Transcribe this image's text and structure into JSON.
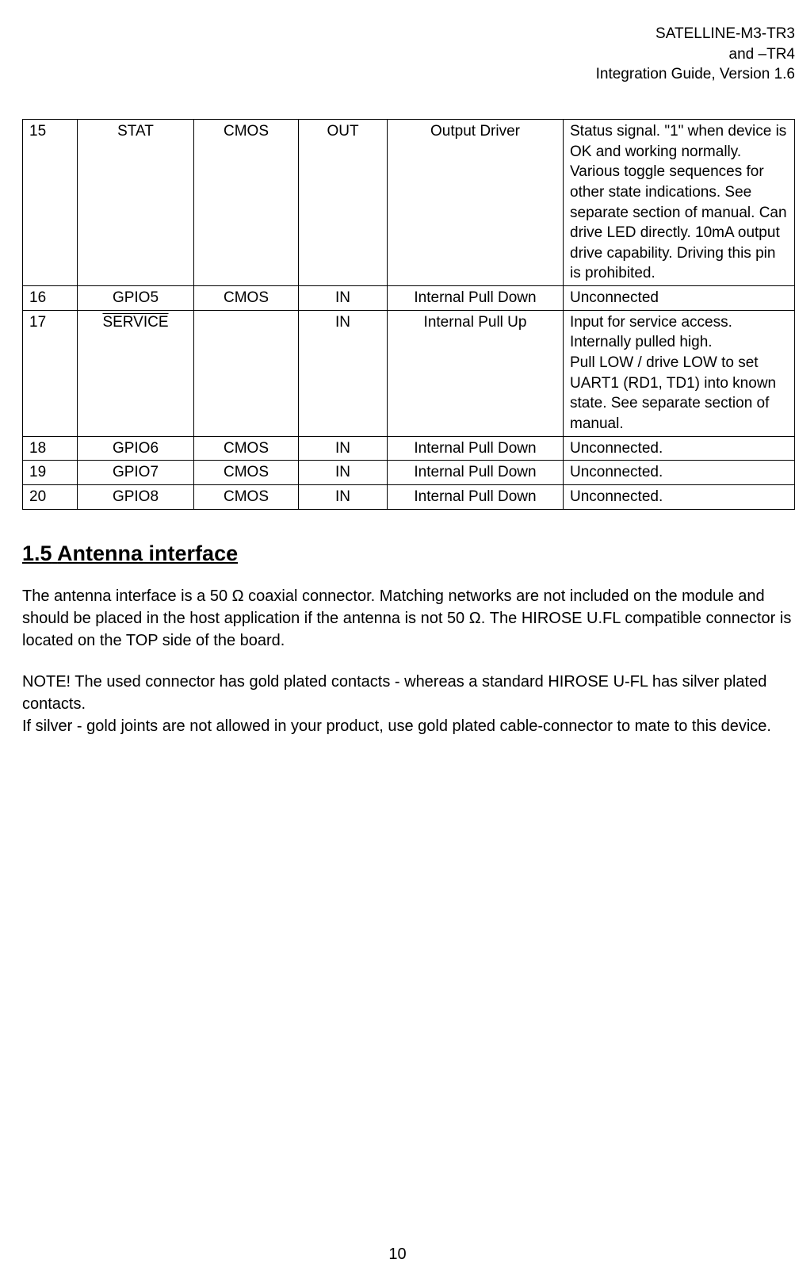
{
  "header": {
    "line1": "SATELLINE-M3-TR3",
    "line2": "and –TR4",
    "line3": "Integration Guide, Version 1.6"
  },
  "table": {
    "rows": [
      {
        "pin": "15",
        "name": "STAT",
        "name_overline": false,
        "type": "CMOS",
        "dir": "OUT",
        "state": "Output Driver",
        "desc": "Status signal. \"1\" when device is OK and working normally. Various toggle sequences for other state indications. See separate section of manual.  Can drive LED directly. 10mA output drive capability. Driving this pin is prohibited."
      },
      {
        "pin": "16",
        "name": "GPIO5",
        "name_overline": false,
        "type": "CMOS",
        "dir": "IN",
        "state": "Internal Pull Down",
        "desc": "Unconnected"
      },
      {
        "pin": "17",
        "name": "SERVICE",
        "name_overline": true,
        "type": "",
        "dir": "IN",
        "state": "Internal Pull Up",
        "desc": "Input for service access. Internally pulled high.\nPull LOW / drive LOW to set UART1 (RD1, TD1) into known state. See separate section of manual."
      },
      {
        "pin": "18",
        "name": "GPIO6",
        "name_overline": false,
        "type": "CMOS",
        "dir": "IN",
        "state": "Internal Pull Down",
        "desc": "Unconnected."
      },
      {
        "pin": "19",
        "name": "GPIO7",
        "name_overline": false,
        "type": "CMOS",
        "dir": "IN",
        "state": "Internal Pull Down",
        "desc": "Unconnected."
      },
      {
        "pin": "20",
        "name": "GPIO8",
        "name_overline": false,
        "type": "CMOS",
        "dir": "IN",
        "state": "Internal Pull Down",
        "desc": "Unconnected."
      }
    ]
  },
  "section": {
    "number": "1.5",
    "title": "Antenna interface",
    "paragraphs": [
      "The antenna interface is a 50 Ω coaxial connector. Matching networks are not included on the module and should be placed in the host application if the antenna is not 50 Ω. The HIROSE U.FL compatible connector is located on the TOP side of the board.",
      "NOTE! The used connector has gold plated contacts - whereas a standard HIROSE U-FL has silver plated contacts.\nIf silver - gold joints are not allowed in your product, use gold plated cable-connector to mate to this device."
    ]
  },
  "page_number": "10"
}
